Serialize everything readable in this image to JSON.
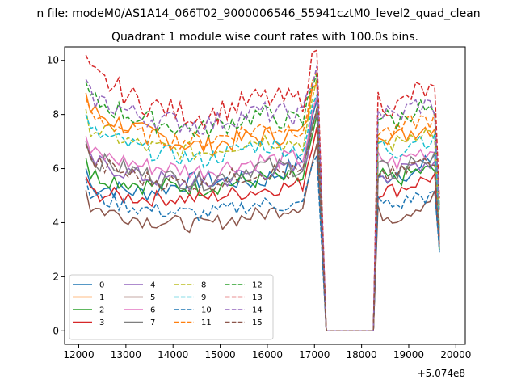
{
  "suptitle": "n file: modeM0/AS1A14_066T02_9000006546_55941cztM0_level2_quad_clean",
  "chart_data": {
    "type": "line",
    "title": "Quadrant 1 module wise count rates with 100.0s bins.",
    "xlabel": "",
    "ylabel": "",
    "x_offset_label": "+5.074e8",
    "xlim": [
      11700,
      20200
    ],
    "ylim": [
      -0.5,
      10.5
    ],
    "x_ticks": [
      12000,
      13000,
      14000,
      15000,
      16000,
      17000,
      18000,
      19000,
      20000
    ],
    "x_tick_labels": [
      "12000",
      "13000",
      "14000",
      "15000",
      "16000",
      "17000",
      "18000",
      "19000",
      "20000"
    ],
    "y_ticks": [
      0,
      2,
      4,
      6,
      8,
      10
    ],
    "y_tick_labels": [
      "0",
      "2",
      "4",
      "6",
      "8",
      "10"
    ],
    "legend": {
      "placement": "lower-left",
      "ncol": 4
    },
    "segments": [
      {
        "x_start": 12150,
        "x_end": 17100,
        "step": 100
      },
      {
        "x_start": 17250,
        "x_end": 18250,
        "step": 100
      },
      {
        "x_start": 18350,
        "x_end": 19650,
        "step": 100
      }
    ],
    "series": [
      {
        "name": "0",
        "color": "#1f77b4",
        "dash": "solid",
        "base": [
          5.4,
          5.1,
          5.6,
          5.5,
          6.5
        ],
        "drift": 0.35,
        "tail": 2.9
      },
      {
        "name": "1",
        "color": "#ff7f0e",
        "dash": "solid",
        "base": [
          8.2,
          7.3,
          6.8,
          7.2,
          7.3
        ],
        "drift": 0.4,
        "tail": 3.6
      },
      {
        "name": "2",
        "color": "#2ca02c",
        "dash": "solid",
        "base": [
          5.8,
          5.4,
          5.3,
          5.6,
          5.6
        ],
        "drift": 0.35,
        "tail": 3.0
      },
      {
        "name": "3",
        "color": "#d62728",
        "dash": "solid",
        "base": [
          5.1,
          4.9,
          4.9,
          5.2,
          5.5
        ],
        "drift": 0.3,
        "tail": 3.2
      },
      {
        "name": "4",
        "color": "#9467bd",
        "dash": "solid",
        "base": [
          6.3,
          5.7,
          5.4,
          5.9,
          6.0
        ],
        "drift": 0.35,
        "tail": 3.8
      },
      {
        "name": "5",
        "color": "#8c564b",
        "dash": "solid",
        "base": [
          4.6,
          4.1,
          3.9,
          4.3,
          4.8
        ],
        "drift": 0.3,
        "tail": 3.1
      },
      {
        "name": "6",
        "color": "#e377c2",
        "dash": "solid",
        "base": [
          6.6,
          6.1,
          5.9,
          6.3,
          6.4
        ],
        "drift": 0.35,
        "tail": 3.5
      },
      {
        "name": "7",
        "color": "#7f7f7f",
        "dash": "solid",
        "base": [
          6.4,
          5.8,
          5.5,
          6.1,
          6.0
        ],
        "drift": 0.35,
        "tail": 3.3
      },
      {
        "name": "8",
        "color": "#bcbd22",
        "dash": "dashed",
        "base": [
          7.6,
          6.8,
          6.6,
          7.1,
          6.9
        ],
        "drift": 0.35,
        "tail": 3.9
      },
      {
        "name": "9",
        "color": "#17becf",
        "dash": "dashed",
        "base": [
          7.4,
          6.7,
          6.3,
          6.9,
          6.6
        ],
        "drift": 0.35,
        "tail": 3.7
      },
      {
        "name": "10",
        "color": "#1f77b4",
        "dash": "dashed",
        "base": [
          5.0,
          4.5,
          4.3,
          4.7,
          4.6
        ],
        "drift": 0.3,
        "tail": 3.0
      },
      {
        "name": "11",
        "color": "#ff7f0e",
        "dash": "dashed",
        "base": [
          8.0,
          7.2,
          7.0,
          7.5,
          7.5
        ],
        "drift": 0.35,
        "tail": 4.4
      },
      {
        "name": "12",
        "color": "#2ca02c",
        "dash": "dashed",
        "base": [
          8.6,
          7.8,
          7.4,
          8.0,
          7.6
        ],
        "drift": 0.4,
        "tail": 4.6
      },
      {
        "name": "13",
        "color": "#d62728",
        "dash": "dashed",
        "base": [
          9.6,
          8.4,
          7.9,
          8.6,
          8.5
        ],
        "drift": 0.45,
        "tail": 4.9
      },
      {
        "name": "14",
        "color": "#9467bd",
        "dash": "dashed",
        "base": [
          8.7,
          7.9,
          7.6,
          8.1,
          7.9
        ],
        "drift": 0.4,
        "tail": 4.5
      },
      {
        "name": "15",
        "color": "#8c564b",
        "dash": "dashed",
        "base": [
          6.3,
          5.6,
          5.4,
          5.9,
          5.8
        ],
        "drift": 0.35,
        "tail": 3.4
      }
    ]
  }
}
